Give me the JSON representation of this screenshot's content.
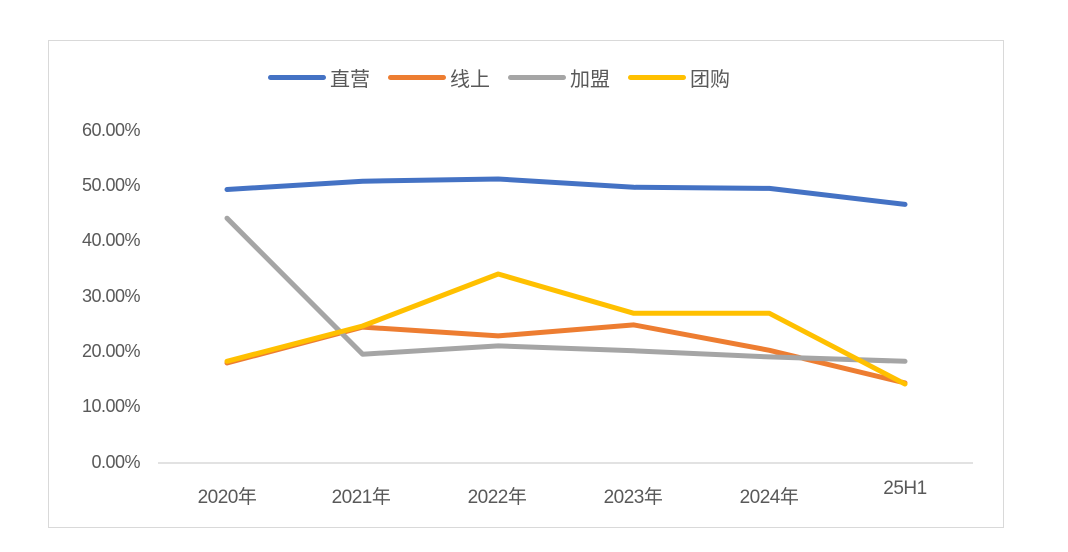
{
  "chart_data": {
    "type": "line",
    "title": "",
    "xlabel": "",
    "ylabel": "",
    "categories": [
      "2020年",
      "2021年",
      "2022年",
      "2023年",
      "2024年",
      "25H1"
    ],
    "ylim": [
      0,
      60
    ],
    "yticks": [
      "0.00%",
      "10.00%",
      "20.00%",
      "30.00%",
      "40.00%",
      "50.00%",
      "60.00%"
    ],
    "grid": false,
    "legend_position": "top",
    "series": [
      {
        "name": "直营",
        "color": "#4472C4",
        "values": [
          49.5,
          51.0,
          51.4,
          49.9,
          49.7,
          46.8
        ]
      },
      {
        "name": "线上",
        "color": "#ED7D31",
        "values": [
          18.1,
          24.6,
          23.0,
          25.0,
          20.4,
          14.5
        ]
      },
      {
        "name": "加盟",
        "color": "#A5A5A5",
        "values": [
          44.3,
          19.7,
          21.2,
          20.3,
          19.2,
          18.4
        ]
      },
      {
        "name": "团购",
        "color": "#FFC000",
        "values": [
          18.4,
          24.8,
          34.2,
          27.1,
          27.1,
          14.3
        ]
      }
    ]
  },
  "legend": [
    {
      "label": "直营",
      "color": "#4472C4"
    },
    {
      "label": "线上",
      "color": "#ED7D31"
    },
    {
      "label": "加盟",
      "color": "#A5A5A5"
    },
    {
      "label": "团购",
      "color": "#FFC000"
    }
  ]
}
